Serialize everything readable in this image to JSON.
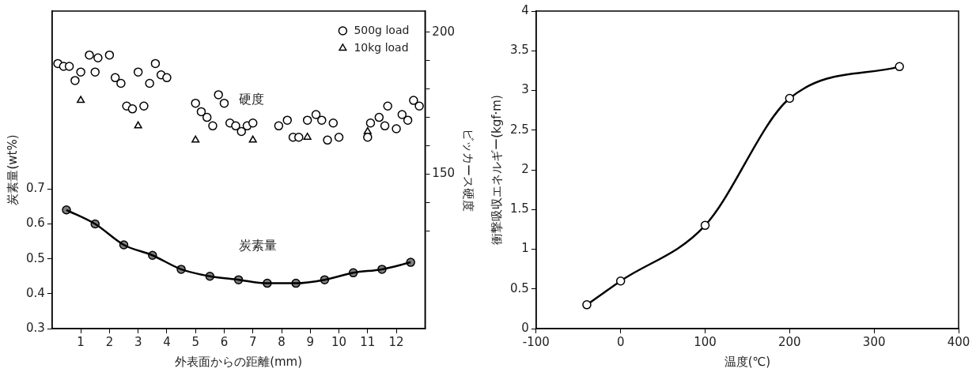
{
  "chart_data": [
    {
      "type": "scatter",
      "xlabel": "外表面からの距離(mm)",
      "ylabel": "炭素量(wt%)",
      "y2label": "ビッカース硬度",
      "xlim": [
        0,
        13
      ],
      "xticks": [
        1,
        2,
        3,
        4,
        5,
        6,
        7,
        8,
        9,
        10,
        11,
        12
      ],
      "ylim": [
        0.3,
        1.21
      ],
      "yticks": [
        0.3,
        0.4,
        0.5,
        0.6,
        0.7
      ],
      "y2lim": [
        95.5,
        207.5
      ],
      "y2ticks": [
        {
          "value": 130,
          "label": null
        },
        {
          "value": 140,
          "label": null
        },
        150,
        {
          "value": 160,
          "label": null
        },
        {
          "value": 170,
          "label": null
        },
        {
          "value": 180,
          "label": null
        },
        {
          "value": 190,
          "label": null
        },
        200
      ],
      "grid": false,
      "legend": "top right",
      "annotations": [
        "硬度",
        "炭素量"
      ],
      "series": [
        {
          "type": "line",
          "color": "#000000",
          "marker": "circle",
          "x": [
            0.5,
            1.5,
            2.5,
            3.5,
            4.5,
            5.5,
            6.5,
            7.5,
            8.5,
            9.5,
            10.5,
            11.5,
            12.5
          ],
          "values": [
            0.64,
            0.6,
            0.54,
            0.51,
            0.47,
            0.45,
            0.44,
            0.43,
            0.43,
            0.44,
            0.46,
            0.47,
            0.49
          ]
        },
        {
          "name": "500g load",
          "axis": "y2",
          "color": "#000000",
          "marker": "circle",
          "x": [
            0.2,
            0.4,
            0.6,
            0.8,
            1.0,
            1.3,
            1.5,
            1.6,
            2.0,
            2.2,
            2.4,
            2.6,
            2.8,
            3.0,
            3.2,
            3.4,
            3.6,
            3.8,
            4.0,
            5.0,
            5.2,
            5.4,
            5.6,
            5.8,
            6.0,
            6.2,
            6.4,
            6.6,
            6.8,
            7.0,
            7.9,
            8.2,
            8.4,
            8.6,
            8.9,
            9.2,
            9.4,
            9.6,
            9.8,
            10.0,
            11.0,
            11.1,
            11.4,
            11.6,
            11.7,
            12.0,
            12.2,
            12.4,
            12.6,
            12.8
          ],
          "values": [
            189,
            188,
            188,
            183,
            186,
            192,
            186,
            191,
            192,
            184,
            182,
            174,
            173,
            186,
            174,
            182,
            189,
            185,
            184,
            175,
            172,
            170,
            167,
            178,
            175,
            168,
            167,
            165,
            167,
            168,
            167,
            169,
            163,
            163,
            169,
            171,
            169,
            162,
            168,
            163,
            163,
            168,
            170,
            167,
            174,
            166,
            171,
            169,
            176,
            174
          ]
        },
        {
          "name": "10kg load",
          "axis": "y2",
          "color": "#000000",
          "marker": "triangle",
          "x": [
            1.0,
            3.0,
            5.0,
            7.0,
            8.9,
            11.0
          ],
          "values": [
            176,
            167,
            162,
            162,
            163,
            165
          ]
        }
      ]
    },
    {
      "type": "line",
      "xlabel": "温度(℃)",
      "ylabel": "衝撃吸収エネルギー(kgf·m)",
      "x": [
        -40,
        0,
        100,
        200,
        330
      ],
      "values": [
        0.3,
        0.6,
        1.3,
        2.9,
        3.3
      ],
      "color": "#000000",
      "marker": "circle",
      "xlim": [
        -100,
        400
      ],
      "xticks": [
        -100,
        0,
        100,
        200,
        300,
        400
      ],
      "ylim": [
        0,
        4
      ],
      "yticks": [
        0,
        0.5,
        1,
        1.5,
        2,
        2.5,
        3,
        3.5,
        4
      ],
      "grid": false
    }
  ]
}
